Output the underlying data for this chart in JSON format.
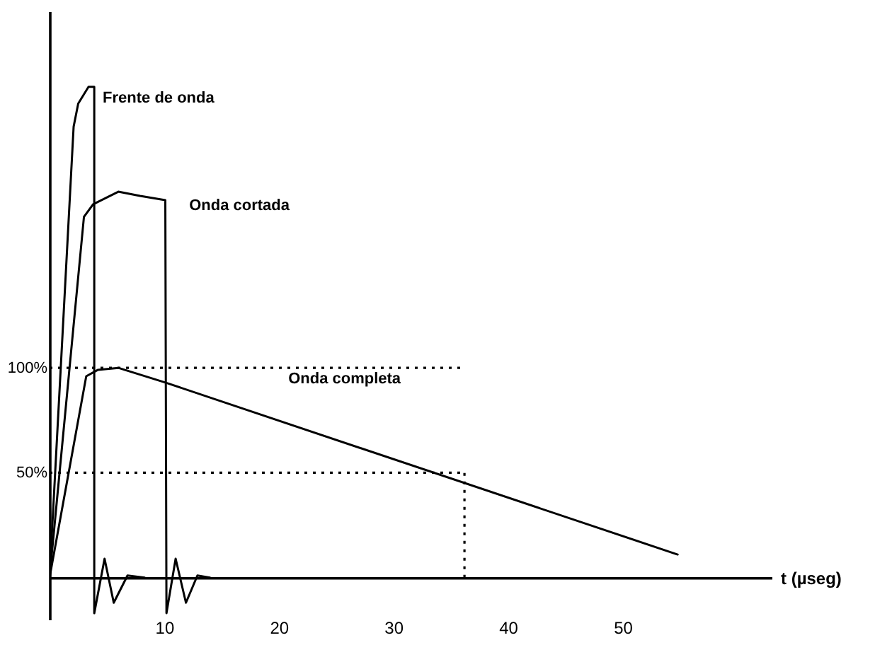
{
  "chart_data": {
    "type": "line",
    "xlabel": "t (µseg)",
    "xlim": [
      0,
      63
    ],
    "ylim": [
      -20,
      270
    ],
    "xticks": [
      10,
      20,
      30,
      40,
      50
    ],
    "yticks": [
      {
        "value": 50,
        "label": "50%"
      },
      {
        "value": 100,
        "label": "100%"
      }
    ],
    "grid": false,
    "legend": false,
    "marker": "none",
    "line_style": "solid",
    "series": [
      {
        "name": "Frente de onda",
        "color": "#000000",
        "x": [
          0,
          2.1,
          2.5,
          3.4,
          3.9,
          3.9,
          4.8,
          5.6,
          6.8,
          8.3
        ],
        "values": [
          0,
          215,
          226,
          234,
          234,
          -17,
          9,
          -12,
          1,
          0
        ]
      },
      {
        "name": "Onda cortada",
        "color": "#000000",
        "x": [
          0,
          3.0,
          3.8,
          6.0,
          7.9,
          10.1,
          10.2,
          11.0,
          11.9,
          12.9,
          14.0
        ],
        "values": [
          0,
          172,
          178,
          184,
          182,
          180,
          -17,
          9,
          -12,
          1,
          0
        ]
      },
      {
        "name": "Onda completa",
        "color": "#000000",
        "x": [
          0,
          3.2,
          4.2,
          6.0,
          10.1,
          54.8
        ],
        "values": [
          0,
          96,
          99,
          100,
          93,
          11
        ]
      }
    ],
    "ref_lines": [
      {
        "axis": "y",
        "value": 100,
        "line_style": "dotted"
      },
      {
        "axis": "y",
        "value": 50,
        "line_style": "dotted"
      },
      {
        "axis": "x",
        "value": 36.2,
        "line_style": "dotted"
      }
    ]
  }
}
